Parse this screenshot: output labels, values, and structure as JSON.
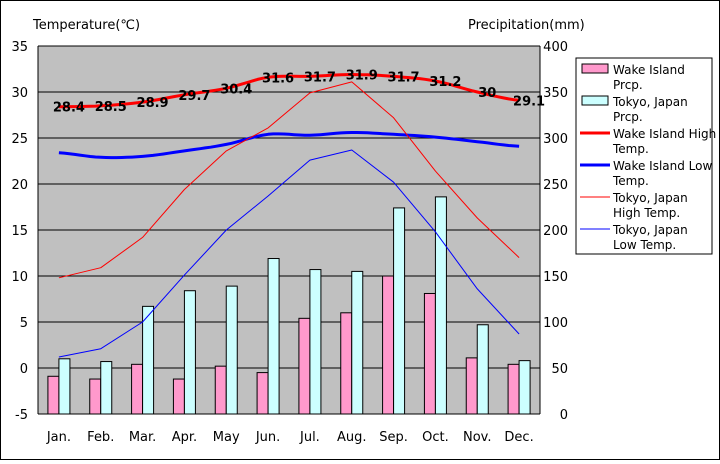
{
  "chart_data": {
    "type": "bar+line",
    "left_axis_title": "Temperature(℃)",
    "right_axis_title": "Precipitation(mm)",
    "categories": [
      "Jan.",
      "Feb.",
      "Mar.",
      "Apr.",
      "May",
      "Jun.",
      "Jul.",
      "Aug.",
      "Sep.",
      "Oct.",
      "Nov.",
      "Dec."
    ],
    "y_left": {
      "min": -5,
      "max": 35,
      "ticks": [
        -5,
        0,
        5,
        10,
        15,
        20,
        25,
        30,
        35
      ]
    },
    "y_right": {
      "min": 0,
      "max": 400,
      "ticks": [
        0,
        50,
        100,
        150,
        200,
        250,
        300,
        350,
        400
      ]
    },
    "grid": true,
    "legend_position": "right",
    "plot_background": "#c0c0c0",
    "bar_series": [
      {
        "name": "Wake Island Prcp.",
        "legend_label": [
          "Wake Island",
          "Prcp."
        ],
        "color": "#ff99cc",
        "values": [
          41,
          38,
          54,
          38,
          52,
          45,
          104,
          110,
          150,
          131,
          61,
          54
        ]
      },
      {
        "name": "Tokyo, Japan Prcp.",
        "legend_label": [
          "Tokyo, Japan",
          "Prcp."
        ],
        "color": "#ccffff",
        "values": [
          60,
          57,
          117,
          134,
          139,
          169,
          157,
          155,
          224,
          236,
          97,
          58
        ]
      }
    ],
    "line_series": [
      {
        "name": "Wake Island High Temp.",
        "legend_label": [
          "Wake Island High",
          "Temp."
        ],
        "color": "#ff0000",
        "width": 3,
        "values": [
          28.4,
          28.5,
          28.9,
          29.7,
          30.4,
          31.6,
          31.7,
          31.9,
          31.7,
          31.2,
          30.0,
          29.1
        ],
        "labels": [
          "28.4",
          "28.5",
          "28.9",
          "29.7",
          "30.4",
          "31.6",
          "31.7",
          "31.9",
          "31.7",
          "31.2",
          "30",
          "29.1"
        ]
      },
      {
        "name": "Wake Island Low Temp.",
        "legend_label": [
          "Wake Island Low",
          "Temp."
        ],
        "color": "#0000ff",
        "width": 3,
        "values": [
          23.4,
          22.9,
          23.0,
          23.6,
          24.3,
          25.4,
          25.3,
          25.6,
          25.4,
          25.1,
          24.6,
          24.1
        ]
      },
      {
        "name": "Tokyo, Japan High Temp.",
        "legend_label": [
          "Tokyo, Japan",
          "High Temp."
        ],
        "color": "#ff0000",
        "width": 1,
        "values": [
          9.8,
          10.9,
          14.2,
          19.4,
          23.6,
          26.1,
          29.9,
          31.1,
          27.2,
          21.4,
          16.3,
          12.0
        ]
      },
      {
        "name": "Tokyo, Japan Low Temp.",
        "legend_label": [
          "Tokyo, Japan",
          "Low Temp."
        ],
        "color": "#0000ff",
        "width": 1,
        "values": [
          1.2,
          2.1,
          5.0,
          10.1,
          15.0,
          18.7,
          22.6,
          23.7,
          20.2,
          14.8,
          8.6,
          3.7
        ]
      }
    ]
  }
}
